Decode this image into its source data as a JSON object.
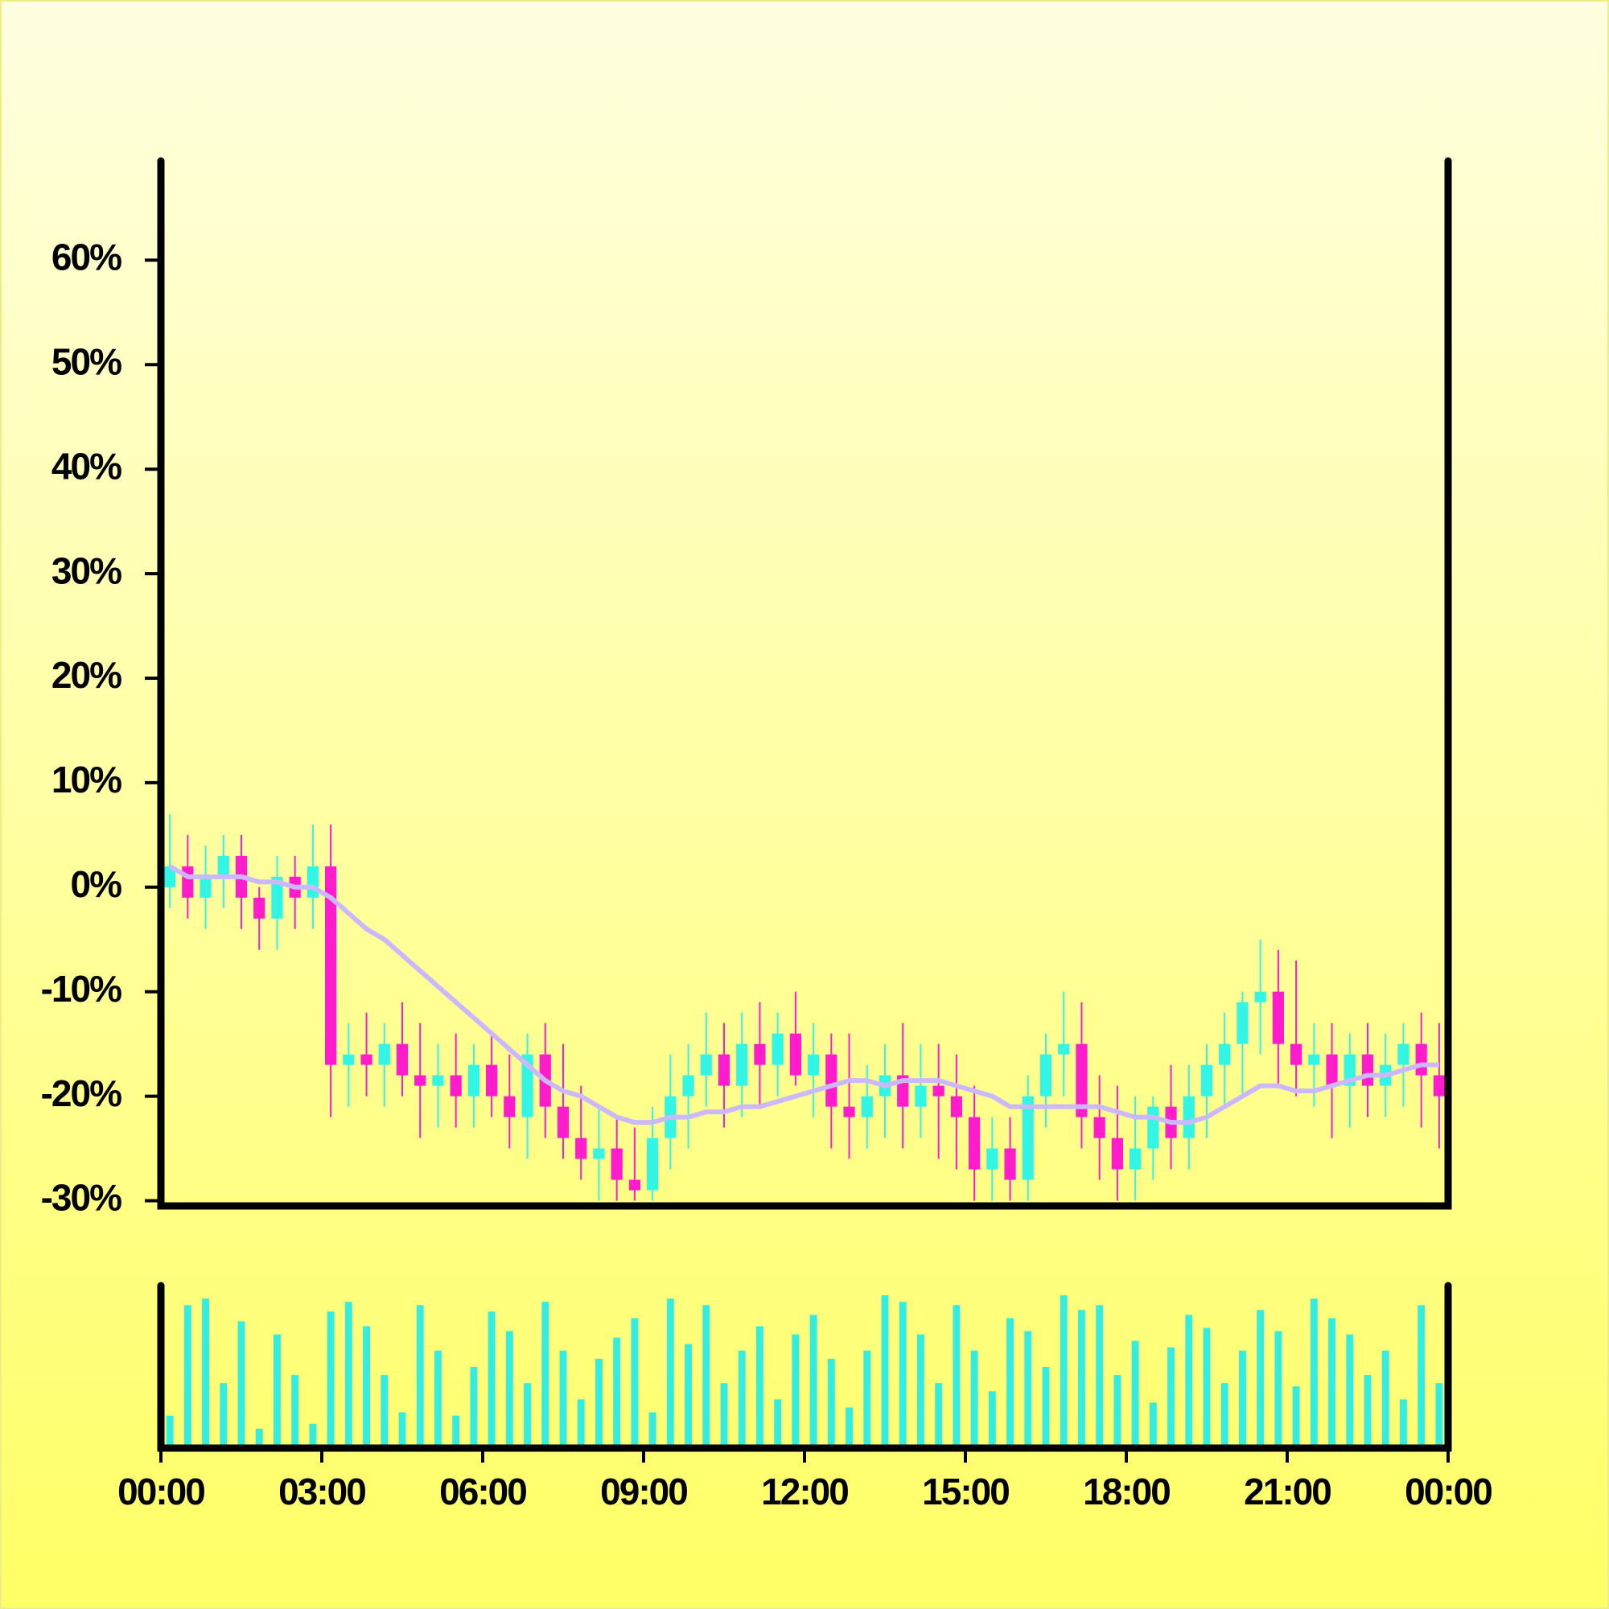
{
  "chart_data": {
    "type": "candlestick",
    "x": [
      10,
      30,
      50,
      70,
      90,
      110,
      130,
      150,
      170,
      190,
      210,
      230,
      250,
      270,
      290,
      310,
      330,
      350,
      370,
      390,
      410,
      430,
      450,
      470,
      490,
      510,
      530,
      550,
      570,
      590,
      610,
      630,
      650,
      670,
      690,
      710,
      730,
      750,
      770,
      790,
      810,
      830,
      850,
      870,
      890,
      910,
      930,
      950,
      970,
      990,
      1010,
      1030,
      1050,
      1070,
      1090,
      1110,
      1130,
      1150,
      1170,
      1190,
      1210,
      1230,
      1250,
      1270,
      1290,
      1310,
      1330,
      1350,
      1370,
      1390,
      1410,
      1430
    ],
    "open": [
      0,
      2,
      -1,
      1,
      3,
      -1,
      -3,
      1,
      -1,
      2,
      -17,
      -16,
      -17,
      -15,
      -18,
      -19,
      -18,
      -20,
      -17,
      -20,
      -22,
      -16,
      -21,
      -24,
      -26,
      -25,
      -28,
      -29,
      -24,
      -20,
      -18,
      -16,
      -19,
      -15,
      -17,
      -14,
      -18,
      -16,
      -21,
      -22,
      -20,
      -18,
      -21,
      -19,
      -20,
      -22,
      -27,
      -25,
      -28,
      -20,
      -16,
      -15,
      -22,
      -24,
      -27,
      -25,
      -21,
      -24,
      -20,
      -17,
      -15,
      -11,
      -10,
      -15,
      -17,
      -16,
      -19,
      -16,
      -19,
      -17,
      -15,
      -18
    ],
    "high": [
      7,
      5,
      4,
      5,
      5,
      0,
      3,
      3,
      6,
      6,
      -13,
      -12,
      -13,
      -11,
      -13,
      -15,
      -14,
      -15,
      -14,
      -16,
      -14,
      -13,
      -15,
      -19,
      -21,
      -22,
      -23,
      -21,
      -16,
      -15,
      -12,
      -13,
      -12,
      -11,
      -12,
      -10,
      -13,
      -14,
      -14,
      -17,
      -15,
      -13,
      -15,
      -15,
      -16,
      -19,
      -22,
      -22,
      -18,
      -14,
      -10,
      -11,
      -18,
      -19,
      -20,
      -20,
      -17,
      -17,
      -15,
      -12,
      -10,
      -5,
      -6,
      -7,
      -13,
      -13,
      -14,
      -13,
      -14,
      -13,
      -12,
      -13
    ],
    "low": [
      -2,
      -3,
      -4,
      -2,
      -4,
      -6,
      -6,
      -4,
      -4,
      -22,
      -21,
      -20,
      -21,
      -20,
      -24,
      -23,
      -23,
      -23,
      -22,
      -25,
      -26,
      -24,
      -26,
      -28,
      -30,
      -30,
      -30,
      -30,
      -27,
      -25,
      -21,
      -23,
      -22,
      -21,
      -20,
      -19,
      -22,
      -25,
      -26,
      -25,
      -24,
      -25,
      -24,
      -26,
      -27,
      -30,
      -30,
      -30,
      -30,
      -23,
      -20,
      -25,
      -28,
      -30,
      -30,
      -28,
      -27,
      -27,
      -24,
      -21,
      -20,
      -16,
      -19,
      -20,
      -21,
      -24,
      -23,
      -22,
      -22,
      -21,
      -23,
      -25
    ],
    "close": [
      2,
      -1,
      1,
      3,
      -1,
      -3,
      1,
      -1,
      2,
      -17,
      -16,
      -17,
      -15,
      -18,
      -19,
      -18,
      -20,
      -17,
      -20,
      -22,
      -16,
      -21,
      -24,
      -26,
      -25,
      -28,
      -29,
      -24,
      -20,
      -18,
      -16,
      -19,
      -15,
      -17,
      -14,
      -18,
      -16,
      -21,
      -22,
      -20,
      -18,
      -21,
      -19,
      -20,
      -22,
      -27,
      -25,
      -28,
      -20,
      -16,
      -15,
      -22,
      -24,
      -27,
      -25,
      -21,
      -24,
      -20,
      -17,
      -15,
      -11,
      -10,
      -15,
      -17,
      -16,
      -19,
      -16,
      -19,
      -17,
      -15,
      -18,
      -20
    ],
    "ma": [
      2,
      1,
      1,
      1,
      1,
      0.5,
      0.5,
      0,
      0,
      -1,
      -2.5,
      -4,
      -5,
      -6.5,
      -8,
      -9.5,
      -11,
      -12.5,
      -14,
      -15.5,
      -17,
      -18.5,
      -19.5,
      -20,
      -21,
      -22,
      -22.5,
      -22.5,
      -22,
      -22,
      -21.5,
      -21.5,
      -21,
      -21,
      -20.5,
      -20,
      -19.5,
      -19,
      -18.5,
      -18.5,
      -19,
      -18.5,
      -18.5,
      -18.5,
      -19,
      -19.5,
      -20,
      -21,
      -21,
      -21,
      -21,
      -21,
      -21,
      -21.5,
      -22,
      -22,
      -22.5,
      -22.5,
      -22,
      -21,
      -20,
      -19,
      -19,
      -19.5,
      -19.5,
      -19,
      -18.5,
      -18,
      -18,
      -17.5,
      -17,
      -17
    ],
    "volume": [
      20,
      88,
      92,
      40,
      78,
      12,
      70,
      45,
      15,
      84,
      90,
      75,
      45,
      22,
      88,
      60,
      20,
      50,
      84,
      72,
      40,
      90,
      60,
      30,
      55,
      68,
      80,
      22,
      92,
      64,
      88,
      40,
      60,
      75,
      30,
      70,
      82,
      55,
      25,
      60,
      94,
      90,
      70,
      40,
      88,
      60,
      35,
      80,
      72,
      50,
      94,
      85,
      88,
      45,
      66,
      28,
      62,
      82,
      74,
      40,
      60,
      85,
      72,
      38,
      92,
      80,
      70,
      45,
      60,
      30,
      88,
      40
    ],
    "xlim": [
      0,
      1440
    ],
    "xticks": [
      {
        "value": 0,
        "label": "00:00"
      },
      {
        "value": 180,
        "label": "03:00"
      },
      {
        "value": 360,
        "label": "06:00"
      },
      {
        "value": 540,
        "label": "09:00"
      },
      {
        "value": 720,
        "label": "12:00"
      },
      {
        "value": 900,
        "label": "15:00"
      },
      {
        "value": 1080,
        "label": "18:00"
      },
      {
        "value": 1260,
        "label": "21:00"
      },
      {
        "value": 1440,
        "label": "00:00"
      }
    ],
    "ylim": [
      -30.5,
      69.5
    ],
    "yticks": [
      {
        "value": -30,
        "label": "-30%"
      },
      {
        "value": -20,
        "label": "-20%"
      },
      {
        "value": -10,
        "label": "-10%"
      },
      {
        "value": 0,
        "label": "0%"
      },
      {
        "value": 10,
        "label": "10%"
      },
      {
        "value": 20,
        "label": "20%"
      },
      {
        "value": 30,
        "label": "30%"
      },
      {
        "value": 40,
        "label": "40%"
      },
      {
        "value": 50,
        "label": "50%"
      },
      {
        "value": 60,
        "label": "60%"
      }
    ],
    "volume_ylim": [
      0,
      100
    ],
    "up_color": "#33f5e6",
    "down_color": "#ff1ccc",
    "ma_color": "#ccb8ff",
    "volume_color": "#33ede0"
  }
}
